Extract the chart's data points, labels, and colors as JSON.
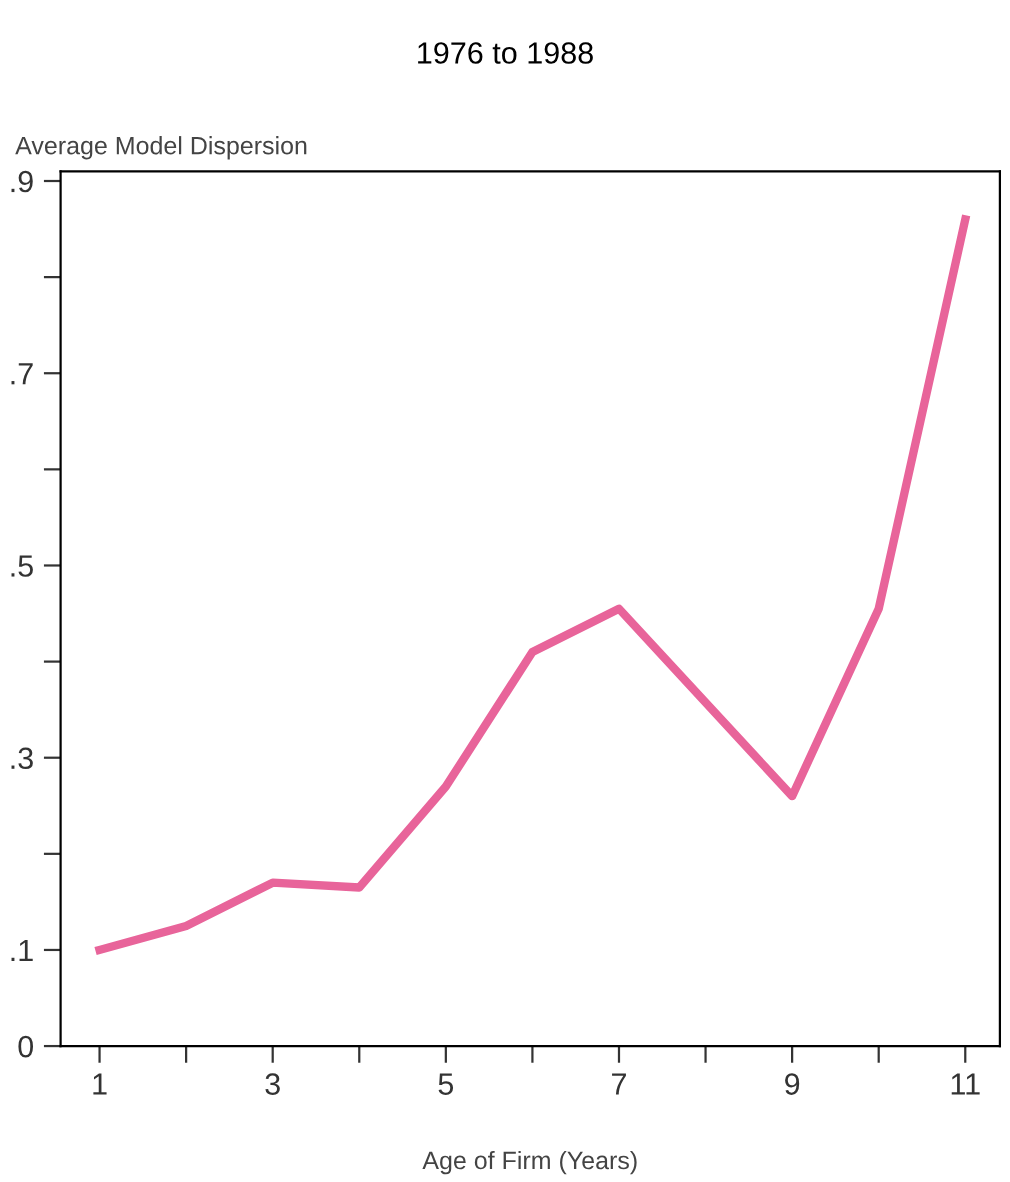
{
  "chart_data": {
    "type": "line",
    "title": "1976 to 1988",
    "ylabel": "Average Model Dispersion",
    "xlabel": "Age of Firm (Years)",
    "x": [
      1,
      2,
      3,
      4,
      5,
      6,
      7,
      9,
      10,
      11
    ],
    "series": [
      {
        "color": "#e8649a",
        "values": [
          0.1,
          0.125,
          0.17,
          0.165,
          0.27,
          0.41,
          0.455,
          0.26,
          0.455,
          0.86
        ]
      }
    ],
    "xlim": [
      0.55,
      11.4
    ],
    "ylim": [
      0,
      0.91
    ],
    "xticks": [
      1,
      {
        "value": 2,
        "label": null
      },
      3,
      {
        "value": 4,
        "label": null
      },
      5,
      {
        "value": 6,
        "label": null
      },
      7,
      {
        "value": 8,
        "label": null
      },
      9,
      {
        "value": 10,
        "label": null
      },
      11
    ],
    "yticks": [
      {
        "value": 0,
        "label": "0"
      },
      {
        "value": 0.1,
        "label": ".1"
      },
      {
        "value": 0.2,
        "label": null
      },
      {
        "value": 0.3,
        "label": ".3"
      },
      {
        "value": 0.4,
        "label": null
      },
      {
        "value": 0.5,
        "label": ".5"
      },
      {
        "value": 0.6,
        "label": null
      },
      {
        "value": 0.7,
        "label": ".7"
      },
      {
        "value": 0.8,
        "label": null
      },
      {
        "value": 0.9,
        "label": ".9"
      }
    ],
    "grid": false,
    "legend": false,
    "marker": "none",
    "line_style": "solid"
  }
}
